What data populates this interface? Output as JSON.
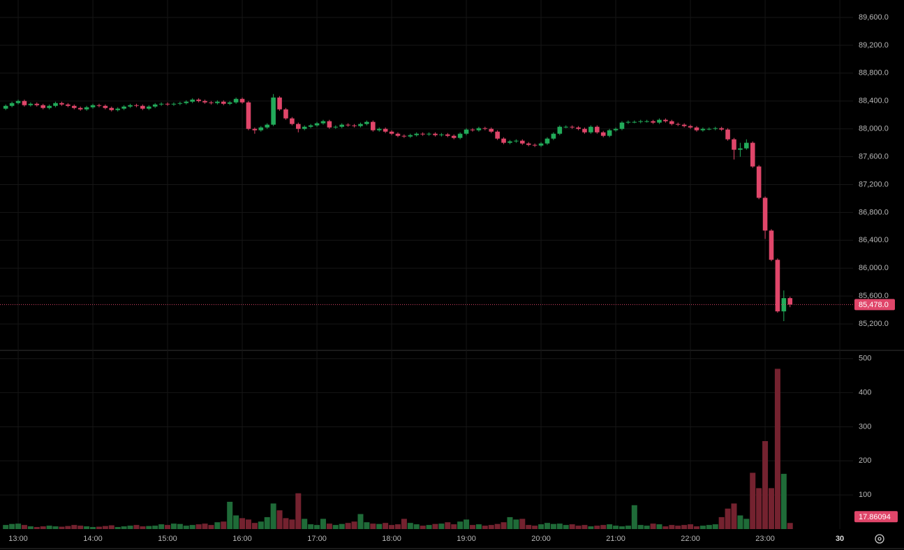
{
  "chart_data": {
    "type": "candlestick",
    "categories": [
      null,
      null,
      "13:00",
      null,
      null,
      null,
      null,
      null,
      null,
      null,
      null,
      null,
      null,
      null,
      "14:00",
      null,
      null,
      null,
      null,
      null,
      null,
      null,
      null,
      null,
      null,
      null,
      "15:00",
      null,
      null,
      null,
      null,
      null,
      null,
      null,
      null,
      null,
      null,
      null,
      "16:00",
      null,
      null,
      null,
      null,
      null,
      null,
      null,
      null,
      null,
      null,
      null,
      "17:00",
      null,
      null,
      null,
      null,
      null,
      null,
      null,
      null,
      null,
      null,
      null,
      "18:00",
      null,
      null,
      null,
      null,
      null,
      null,
      null,
      null,
      null,
      null,
      null,
      "19:00",
      null,
      null,
      null,
      null,
      null,
      null,
      null,
      null,
      null,
      null,
      null,
      "20:00",
      null,
      null,
      null,
      null,
      null,
      null,
      null,
      null,
      null,
      null,
      null,
      "21:00",
      null,
      null,
      null,
      null,
      null,
      null,
      null,
      null,
      null,
      null,
      null,
      "22:00",
      null,
      null,
      null,
      null,
      null,
      null,
      null,
      null,
      null,
      null,
      null,
      "23:00",
      null,
      null,
      null,
      null,
      null,
      null,
      null,
      null,
      null,
      null,
      null,
      "30"
    ],
    "open": [
      88290,
      88330,
      88370,
      88400,
      88340,
      88360,
      88340,
      88300,
      88330,
      88370,
      88350,
      88330,
      88300,
      88280,
      88310,
      88340,
      88330,
      88300,
      88270,
      88290,
      88320,
      88340,
      88330,
      88290,
      88320,
      88350,
      88360,
      88350,
      88360,
      88370,
      88390,
      88420,
      88400,
      88380,
      88370,
      88390,
      88360,
      88380,
      88430,
      88380,
      88000,
      87980,
      88020,
      88060,
      88450,
      88280,
      88150,
      88070,
      88000,
      88030,
      88050,
      88080,
      88110,
      88020,
      88030,
      88060,
      88050,
      88040,
      88070,
      88100,
      87980,
      88000,
      87960,
      87930,
      87900,
      87890,
      87910,
      87930,
      87920,
      87930,
      87910,
      87920,
      87900,
      87870,
      87930,
      87990,
      87980,
      88010,
      88000,
      87960,
      87860,
      87800,
      87820,
      87830,
      87790,
      87770,
      87760,
      87790,
      87860,
      87930,
      88030,
      88030,
      88020,
      88000,
      87950,
      88030,
      87950,
      87900,
      87980,
      88000,
      88090,
      88100,
      88100,
      88110,
      88110,
      88090,
      88130,
      88110,
      88070,
      88060,
      88040,
      88020,
      87980,
      88000,
      88000,
      88010,
      87990,
      87850,
      87700,
      87720,
      87800,
      87460,
      87010,
      86540,
      86120,
      85380,
      85570,
      null,
      null,
      null,
      null,
      null,
      null,
      null,
      null
    ],
    "high": [
      88350,
      88390,
      88420,
      88420,
      88380,
      88380,
      88360,
      88350,
      88390,
      88390,
      88370,
      88350,
      88320,
      88330,
      88360,
      88360,
      88350,
      88320,
      88310,
      88340,
      88360,
      88360,
      88350,
      88340,
      88370,
      88380,
      88380,
      88380,
      88390,
      88410,
      88440,
      88440,
      88420,
      88400,
      88410,
      88410,
      88400,
      88450,
      88450,
      88400,
      88020,
      88040,
      88080,
      88500,
      88470,
      88300,
      88170,
      88090,
      88050,
      88070,
      88100,
      88130,
      88130,
      88050,
      88080,
      88080,
      88070,
      88090,
      88120,
      88120,
      88020,
      88020,
      87980,
      87950,
      87920,
      87930,
      87950,
      87950,
      87950,
      87950,
      87940,
      87940,
      87920,
      87950,
      88010,
      88010,
      88030,
      88030,
      88020,
      87980,
      87880,
      87840,
      87850,
      87850,
      87810,
      87790,
      87810,
      87880,
      87950,
      88050,
      88050,
      88050,
      88040,
      88020,
      88050,
      88050,
      87970,
      88000,
      88020,
      88110,
      88120,
      88120,
      88130,
      88130,
      88130,
      88150,
      88150,
      88130,
      88090,
      88080,
      88060,
      88040,
      88020,
      88020,
      88030,
      88030,
      88010,
      87870,
      87800,
      87850,
      87820,
      87480,
      87030,
      86560,
      86140,
      85680,
      85590,
      null,
      null,
      null,
      null,
      null,
      null,
      null,
      null
    ],
    "low": [
      88270,
      88310,
      88350,
      88320,
      88320,
      88320,
      88280,
      88280,
      88310,
      88330,
      88310,
      88280,
      88260,
      88260,
      88290,
      88310,
      88280,
      88250,
      88250,
      88270,
      88300,
      88310,
      88270,
      88270,
      88300,
      88330,
      88330,
      88330,
      88340,
      88350,
      88370,
      88380,
      88360,
      88350,
      88350,
      88340,
      88340,
      88360,
      88360,
      87980,
      87930,
      87960,
      88000,
      88040,
      88260,
      88130,
      88050,
      87950,
      87980,
      88010,
      88030,
      88060,
      88000,
      88000,
      88010,
      88030,
      88020,
      88020,
      88050,
      87960,
      87960,
      87940,
      87910,
      87880,
      87870,
      87870,
      87890,
      87900,
      87900,
      87890,
      87890,
      87880,
      87850,
      87850,
      87910,
      87960,
      87960,
      87980,
      87940,
      87840,
      87780,
      87780,
      87800,
      87770,
      87750,
      87740,
      87740,
      87770,
      87840,
      87910,
      88010,
      88000,
      87980,
      87930,
      87930,
      87930,
      87880,
      87880,
      87960,
      87980,
      88070,
      88080,
      88080,
      88090,
      88070,
      88070,
      88090,
      88050,
      88040,
      88020,
      88000,
      87960,
      87960,
      87980,
      87980,
      87970,
      87830,
      87560,
      87600,
      87700,
      87440,
      86990,
      86420,
      86100,
      85360,
      85240,
      85440,
      null,
      null,
      null,
      null,
      null,
      null,
      null,
      null
    ],
    "close": [
      88330,
      88370,
      88400,
      88340,
      88360,
      88340,
      88300,
      88330,
      88370,
      88350,
      88330,
      88300,
      88280,
      88310,
      88340,
      88330,
      88300,
      88270,
      88290,
      88320,
      88340,
      88330,
      88290,
      88320,
      88350,
      88360,
      88350,
      88360,
      88370,
      88390,
      88420,
      88400,
      88380,
      88370,
      88390,
      88360,
      88380,
      88430,
      88380,
      88000,
      87980,
      88020,
      88060,
      88450,
      88280,
      88150,
      88070,
      88000,
      88030,
      88050,
      88080,
      88110,
      88020,
      88030,
      88060,
      88050,
      88040,
      88070,
      88100,
      87980,
      88000,
      87960,
      87930,
      87900,
      87890,
      87910,
      87930,
      87920,
      87930,
      87910,
      87920,
      87900,
      87870,
      87930,
      87990,
      87980,
      88010,
      88000,
      87960,
      87860,
      87800,
      87820,
      87830,
      87790,
      87770,
      87760,
      87790,
      87860,
      87930,
      88030,
      88030,
      88020,
      88000,
      87950,
      88030,
      87950,
      87900,
      87980,
      88000,
      88090,
      88100,
      88100,
      88110,
      88110,
      88090,
      88130,
      88110,
      88070,
      88060,
      88040,
      88020,
      87980,
      88000,
      88000,
      88010,
      87990,
      87850,
      87700,
      87720,
      87800,
      87460,
      87010,
      86540,
      86120,
      85380,
      85570,
      85478,
      null,
      null,
      null,
      null,
      null,
      null,
      null,
      null
    ],
    "volume": [
      12,
      15,
      16,
      12,
      8,
      6,
      8,
      10,
      8,
      7,
      9,
      12,
      10,
      8,
      6,
      7,
      9,
      11,
      6,
      8,
      10,
      12,
      8,
      9,
      10,
      14,
      12,
      16,
      15,
      10,
      12,
      14,
      16,
      12,
      20,
      22,
      80,
      40,
      32,
      28,
      18,
      22,
      35,
      75,
      55,
      32,
      28,
      105,
      30,
      14,
      12,
      30,
      16,
      12,
      15,
      18,
      22,
      44,
      20,
      16,
      15,
      18,
      12,
      14,
      30,
      18,
      14,
      10,
      12,
      15,
      16,
      20,
      14,
      22,
      28,
      12,
      14,
      10,
      12,
      15,
      20,
      35,
      28,
      30,
      12,
      10,
      14,
      18,
      15,
      16,
      12,
      14,
      10,
      12,
      8,
      10,
      12,
      14,
      10,
      8,
      10,
      70,
      12,
      10,
      16,
      14,
      8,
      12,
      10,
      12,
      14,
      8,
      10,
      12,
      14,
      35,
      60,
      75,
      40,
      30,
      165,
      120,
      258,
      120,
      470,
      162,
      17.86094,
      null,
      null,
      null,
      null,
      null,
      null,
      null,
      null
    ],
    "up_color": "#22ab5a",
    "down_color": "#e0466a",
    "volume_up_color": "#1f6b38",
    "volume_down_color": "#74222f",
    "ylim": [
      84840,
      89850
    ],
    "yticks": [
      {
        "value": 85200,
        "label": "85,200.0"
      },
      {
        "value": 85600,
        "label": "85,600.0"
      },
      {
        "value": 86000,
        "label": "86,000.0"
      },
      {
        "value": 86400,
        "label": "86,400.0"
      },
      {
        "value": 86800,
        "label": "86,800.0"
      },
      {
        "value": 87200,
        "label": "87,200.0"
      },
      {
        "value": 87600,
        "label": "87,600.0"
      },
      {
        "value": 88000,
        "label": "88,000.0"
      },
      {
        "value": 88400,
        "label": "88,400.0"
      },
      {
        "value": 88800,
        "label": "88,800.0"
      },
      {
        "value": 89200,
        "label": "89,200.0"
      },
      {
        "value": 89600,
        "label": "89,600.0"
      }
    ],
    "y2lim": [
      0,
      522
    ],
    "y2ticks": [
      100,
      200,
      300,
      400,
      500
    ],
    "last_price": {
      "value": 85478,
      "label": "85,478.0"
    },
    "grid": true
  }
}
